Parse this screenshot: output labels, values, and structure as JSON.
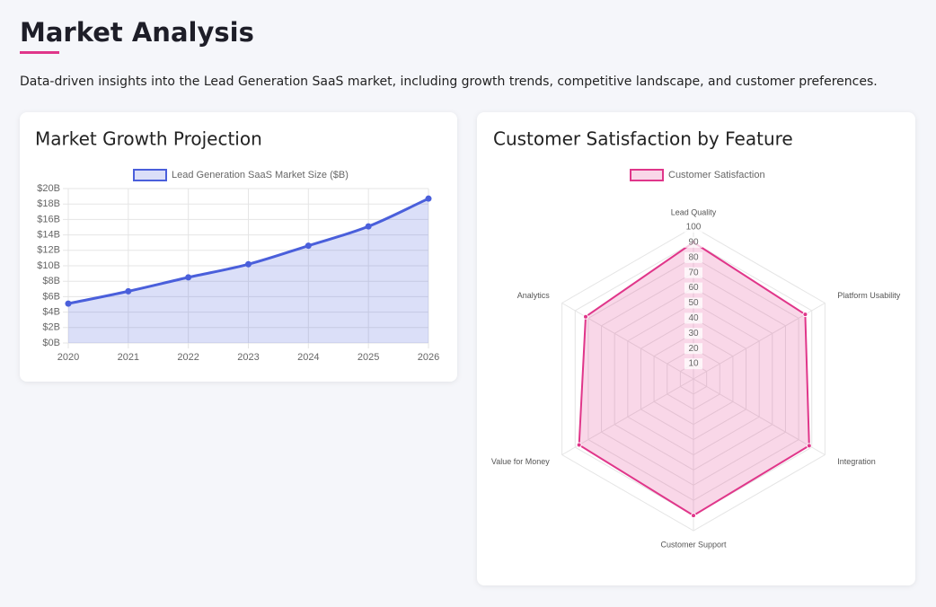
{
  "header": {
    "title": "Market Analysis",
    "description": "Data-driven insights into the Lead Generation SaaS market, including growth trends, competitive landscape, and customer preferences."
  },
  "chart_data": [
    {
      "type": "line",
      "title": "Market Growth Projection",
      "categories": [
        "2020",
        "2021",
        "2022",
        "2023",
        "2024",
        "2025",
        "2026"
      ],
      "series": [
        {
          "name": "Lead Generation SaaS Market Size ($B)",
          "color": "#4a5fdb",
          "values": [
            5.1,
            6.7,
            8.5,
            10.2,
            12.6,
            15.1,
            18.7
          ]
        }
      ],
      "ylim": [
        0,
        20
      ],
      "yticks": [
        {
          "value": 0,
          "label": "$0B"
        },
        {
          "value": 2,
          "label": "$2B"
        },
        {
          "value": 4,
          "label": "$4B"
        },
        {
          "value": 6,
          "label": "$6B"
        },
        {
          "value": 8,
          "label": "$8B"
        },
        {
          "value": 10,
          "label": "$10B"
        },
        {
          "value": 12,
          "label": "$12B"
        },
        {
          "value": 14,
          "label": "$14B"
        },
        {
          "value": 16,
          "label": "$16B"
        },
        {
          "value": 18,
          "label": "$18B"
        },
        {
          "value": 20,
          "label": "$20B"
        }
      ],
      "grid": true,
      "legend": "top"
    },
    {
      "type": "radar",
      "title": "Customer Satisfaction by Feature",
      "categories": [
        "Lead Quality",
        "Platform Usability",
        "Integration",
        "Customer Support",
        "Value for Money",
        "Analytics"
      ],
      "series": [
        {
          "name": "Customer Satisfaction",
          "color": "#e0368a",
          "values": [
            90,
            85,
            88,
            90,
            87,
            82
          ]
        }
      ],
      "rlim": [
        0,
        100
      ],
      "rticks": [
        10,
        20,
        30,
        40,
        50,
        60,
        70,
        80,
        90,
        100
      ],
      "grid": true,
      "legend": "top"
    }
  ]
}
